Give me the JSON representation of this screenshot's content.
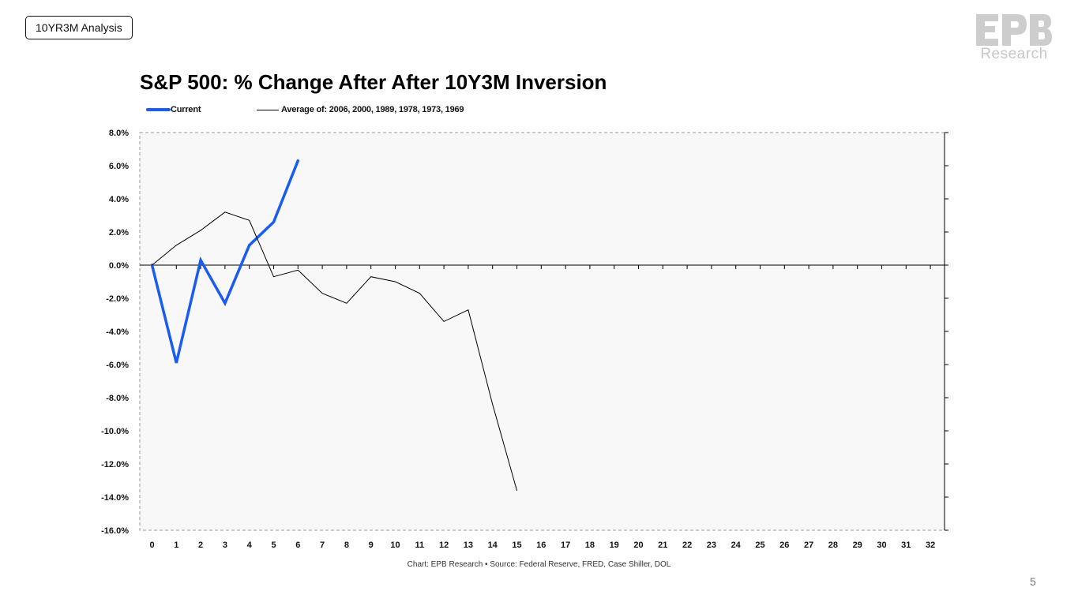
{
  "tag_label": "10YR3M Analysis",
  "logo": {
    "mark": "EPB",
    "sub": "Research",
    "color": "#c7c7c7"
  },
  "page_number": "5",
  "source_note": "Chart: EPB Research •  Source: Federal Reserve, FRED, Case Shiller, DOL",
  "chart_data": {
    "type": "line",
    "title": "S&P 500: % Change After After 10Y3M Inversion",
    "xlabel": "",
    "ylabel": "",
    "x": [
      0,
      1,
      2,
      3,
      4,
      5,
      6,
      7,
      8,
      9,
      10,
      11,
      12,
      13,
      14,
      15,
      16,
      17,
      18,
      19,
      20,
      21,
      22,
      23,
      24,
      25,
      26,
      27,
      28,
      29,
      30,
      31,
      32
    ],
    "x_tick_labels": [
      "0",
      "1",
      "2",
      "3",
      "4",
      "5",
      "6",
      "7",
      "8",
      "9",
      "10",
      "11",
      "12",
      "13",
      "14",
      "15",
      "16",
      "17",
      "18",
      "19",
      "20",
      "21",
      "22",
      "23",
      "24",
      "25",
      "26",
      "27",
      "28",
      "29",
      "30",
      "31",
      "32"
    ],
    "ylim": [
      -16,
      8
    ],
    "y_ticks": [
      8,
      6,
      4,
      2,
      0,
      -2,
      -4,
      -6,
      -8,
      -10,
      -12,
      -14,
      -16
    ],
    "y_tick_labels": [
      "8.0%",
      "6.0%",
      "4.0%",
      "2.0%",
      "0.0%",
      "-2.0%",
      "-4.0%",
      "-6.0%",
      "-8.0%",
      "-10.0%",
      "-12.0%",
      "-14.0%",
      "-16.0%"
    ],
    "legend_position": "top-left",
    "grid": false,
    "plot_background": "#f8f8f8",
    "series": [
      {
        "name": "Current",
        "color": "#1a5cf0",
        "width": 3.5,
        "x": [
          0,
          1,
          2,
          3,
          4,
          5,
          6
        ],
        "values": [
          0.0,
          -5.9,
          0.3,
          -2.3,
          1.2,
          2.6,
          6.3
        ]
      },
      {
        "name": "Average of: 2006, 2000, 1989, 1978, 1973, 1969",
        "color": "#000000",
        "width": 1,
        "x": [
          0,
          1,
          2,
          3,
          4,
          5,
          6,
          7,
          8,
          9,
          10,
          11,
          12,
          13,
          14,
          15
        ],
        "values": [
          0.0,
          1.2,
          2.1,
          3.2,
          2.7,
          -0.7,
          -0.3,
          -1.7,
          -2.3,
          -0.7,
          -1.0,
          -1.7,
          -3.4,
          -2.7,
          -8.4,
          -13.6
        ]
      }
    ]
  }
}
